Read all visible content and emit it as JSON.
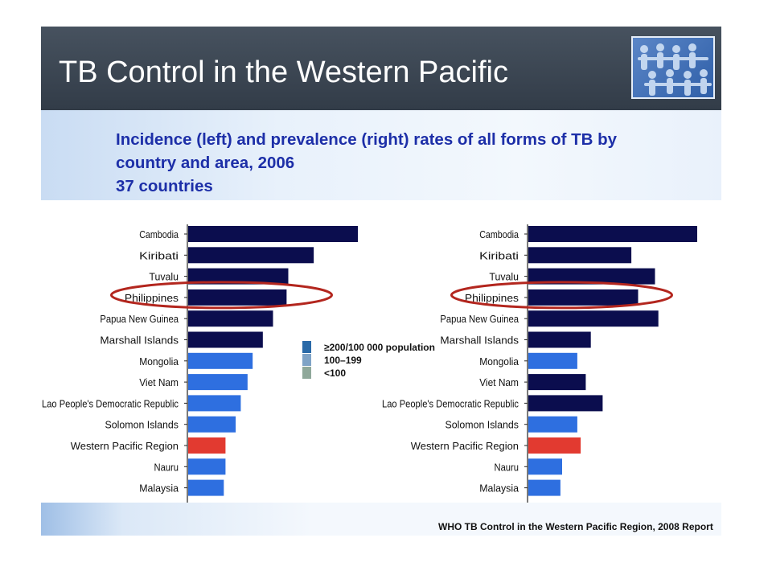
{
  "slide": {
    "title": "TB Control in the Western Pacific",
    "subtitle_lines": [
      "Incidence (left) and prevalence (right) rates of all forms of TB  by",
      "country and area, 2006",
      "37 countries"
    ],
    "source": "WHO TB Control in the Western Pacific Region, 2008 Report"
  },
  "colors": {
    "dark": "#0b0d4e",
    "blue": "#2e6fe0",
    "red": "#e23a30",
    "highlight_ring": "#b3261e",
    "legend_high": "#2a6aa8",
    "legend_mid": "#7fa3c6",
    "legend_low": "#8fa89a"
  },
  "legend": {
    "items": [
      {
        "label": "≥200/100 000 population",
        "color": "#2a6aa8"
      },
      {
        "label": "100–199",
        "color": "#7fa3c6"
      },
      {
        "label": "<100",
        "color": "#8fa89a"
      }
    ]
  },
  "chart_data": [
    {
      "type": "bar",
      "orientation": "horizontal",
      "categories": [
        "Cambodia",
        "Kiribati",
        "Tuvalu",
        "Philippines",
        "Papua New Guinea",
        "Marshall Islands",
        "Mongolia",
        "Viet Nam",
        "Lao People's Democratic Republic",
        "Solomon Islands",
        "Western Pacific Region",
        "Nauru",
        "Malaysia"
      ],
      "values": [
        100,
        74,
        59,
        58,
        50,
        44,
        38,
        35,
        31,
        28,
        22,
        22,
        21
      ],
      "value_units": "relative bar length (0–100, no axis printed)",
      "bar_colors": [
        "dark",
        "dark",
        "dark",
        "dark",
        "dark",
        "dark",
        "blue",
        "blue",
        "blue",
        "blue",
        "red",
        "blue",
        "blue"
      ],
      "highlighted_category": "Philippines",
      "title": "",
      "xlabel": "",
      "ylabel": "",
      "grid": false
    },
    {
      "type": "bar",
      "orientation": "horizontal",
      "categories": [
        "Cambodia",
        "Kiribati",
        "Tuvalu",
        "Philippines",
        "Papua New Guinea",
        "Marshall Islands",
        "Mongolia",
        "Viet Nam",
        "Lao People's Democratic Republic",
        "Solomon Islands",
        "Western Pacific Region",
        "Nauru",
        "Malaysia"
      ],
      "values": [
        100,
        61,
        75,
        65,
        77,
        37,
        29,
        34,
        44,
        29,
        31,
        20,
        19
      ],
      "value_units": "relative bar length (0–100, no axis printed)",
      "bar_colors": [
        "dark",
        "dark",
        "dark",
        "dark",
        "dark",
        "dark",
        "blue",
        "dark",
        "dark",
        "blue",
        "red",
        "blue",
        "blue"
      ],
      "highlighted_category": "Philippines",
      "title": "",
      "xlabel": "",
      "ylabel": "",
      "grid": false
    }
  ]
}
